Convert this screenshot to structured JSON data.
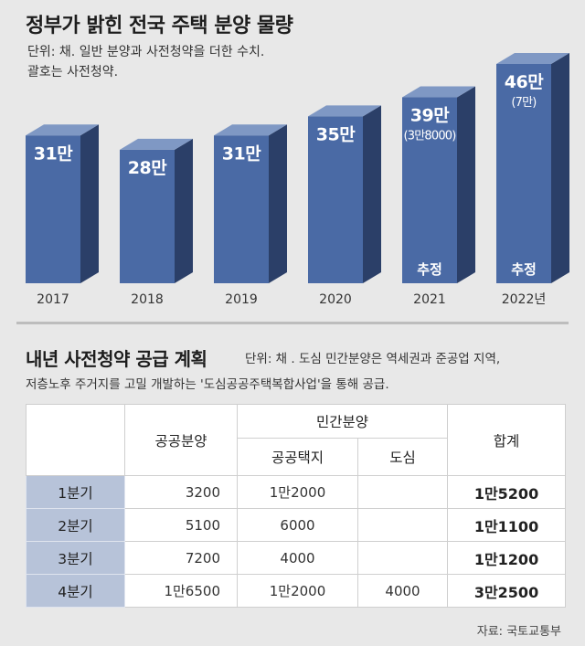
{
  "title": "정부가 밝힌 전국 주택 분양 물량",
  "unit_line1": "단위: 채. 일반 분양과 사전청약을 더한 수치.",
  "unit_line2": "괄호는 사전청약.",
  "chart_data": {
    "type": "bar",
    "categories": [
      "2017",
      "2018",
      "2019",
      "2020",
      "2021",
      "2022년"
    ],
    "values": [
      31,
      28,
      31,
      35,
      39,
      46
    ],
    "value_labels": [
      "31만",
      "28만",
      "31만",
      "35만",
      "39만",
      "46만"
    ],
    "preorder_labels": [
      "",
      "",
      "",
      "",
      "(3만8000)",
      "(7만)"
    ],
    "estimate_labels": [
      "",
      "",
      "",
      "",
      "추정",
      "추정"
    ],
    "bar_color": "#4a6aa5",
    "side_color": "#2b3f68",
    "top_color": "#7f98c4"
  },
  "plan": {
    "title": "내년 사전청약 공급 계획",
    "unit_line1": "단위: 채 . 도심 민간분양은 역세권과 준공업 지역,",
    "unit_line2": "저층노후 주거지를 고밀 개발하는 '도심공공주택복합사업'을 통해 공급.",
    "headers": {
      "public": "공공분양",
      "private": "민간분양",
      "private_public_land": "공공택지",
      "private_urban": "도심",
      "total": "합계"
    },
    "rows": [
      {
        "label": "1분기",
        "public": "3200",
        "land": "1만2000",
        "urban": "",
        "total": "1만5200"
      },
      {
        "label": "2분기",
        "public": "5100",
        "land": "6000",
        "urban": "",
        "total": "1만1100"
      },
      {
        "label": "3분기",
        "public": "7200",
        "land": "4000",
        "urban": "",
        "total": "1만1200"
      },
      {
        "label": "4분기",
        "public": "1만6500",
        "land": "1만2000",
        "urban": "4000",
        "total": "3만2500"
      }
    ]
  },
  "source": "자료: 국토교통부"
}
